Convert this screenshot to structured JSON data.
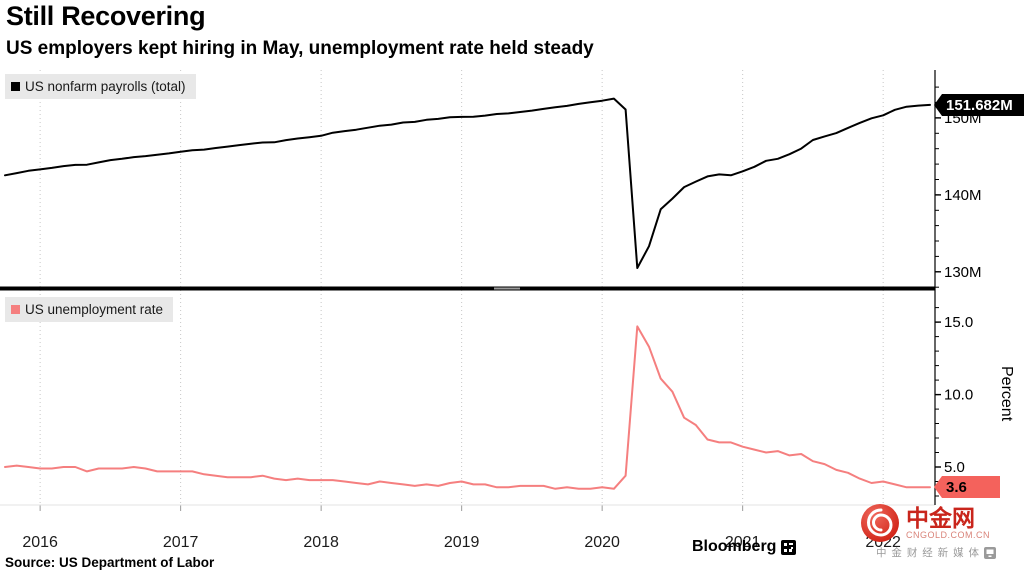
{
  "header": {
    "title": "Still Recovering",
    "subtitle": "US employers kept hiring in May, unemployment rate held steady"
  },
  "footer": {
    "source": "Source: US Department of Labor",
    "brand": "Bloomberg"
  },
  "watermark": {
    "name": "中金网",
    "domain": "CNGOLD.COM.CN",
    "tagline": "中 金 财 经 新 媒 体"
  },
  "x_axis": {
    "labels": [
      "2016",
      "2017",
      "2018",
      "2019",
      "2020",
      "2021",
      "2022"
    ],
    "tick_month_indices": [
      3,
      15,
      27,
      39,
      51,
      63,
      75
    ],
    "frequency": "monthly"
  },
  "chart_data": [
    {
      "type": "line",
      "panel": "top",
      "series_id": "nonfarm-payrolls-line",
      "legend": "US nonfarm payrolls (total)",
      "color": "#000000",
      "ylim": [
        127.9,
        155.7
      ],
      "yticks": [
        130,
        140,
        150
      ],
      "ytick_labels": [
        "130M",
        "140M",
        "150M"
      ],
      "last_value_label": "151.682M",
      "values": [
        142.54,
        142.82,
        143.12,
        143.31,
        143.5,
        143.74,
        143.89,
        143.92,
        144.22,
        144.51,
        144.68,
        144.91,
        145.04,
        145.21,
        145.38,
        145.6,
        145.8,
        145.88,
        146.09,
        146.27,
        146.47,
        146.64,
        146.8,
        146.83,
        147.11,
        147.32,
        147.49,
        147.67,
        148.08,
        148.28,
        148.46,
        148.73,
        148.98,
        149.13,
        149.4,
        149.48,
        149.75,
        149.87,
        150.09,
        150.13,
        150.14,
        150.29,
        150.5,
        150.58,
        150.77,
        150.95,
        151.16,
        151.37,
        151.56,
        151.82,
        152.02,
        152.23,
        152.5,
        151.09,
        130.5,
        133.33,
        138.12,
        139.51,
        141.01,
        141.72,
        142.4,
        142.66,
        142.54,
        143.06,
        143.64,
        144.42,
        144.69,
        145.28,
        146.01,
        147.12,
        147.6,
        148.02,
        148.7,
        149.35,
        149.94,
        150.33,
        151.05,
        151.45,
        151.6,
        151.682
      ]
    },
    {
      "type": "line",
      "panel": "bottom",
      "series_id": "unemployment-rate-line",
      "legend": "US unemployment rate",
      "color": "#f57f7f",
      "ylabel": "Percent",
      "ylim": [
        2.38,
        16.8
      ],
      "yticks": [
        5,
        10,
        15
      ],
      "ytick_labels": [
        "5.0",
        "10.0",
        "15.0"
      ],
      "last_value_label": "3.6",
      "values": [
        5.0,
        5.1,
        5.0,
        4.9,
        4.9,
        5.0,
        5.0,
        4.7,
        4.9,
        4.9,
        4.9,
        5.0,
        4.9,
        4.7,
        4.7,
        4.7,
        4.7,
        4.5,
        4.4,
        4.3,
        4.3,
        4.3,
        4.4,
        4.2,
        4.1,
        4.2,
        4.1,
        4.1,
        4.1,
        4.0,
        3.9,
        3.8,
        4.0,
        3.9,
        3.8,
        3.7,
        3.8,
        3.7,
        3.9,
        4.0,
        3.8,
        3.8,
        3.6,
        3.6,
        3.7,
        3.7,
        3.7,
        3.5,
        3.6,
        3.5,
        3.5,
        3.6,
        3.5,
        4.4,
        14.7,
        13.3,
        11.1,
        10.2,
        8.4,
        7.9,
        6.9,
        6.7,
        6.7,
        6.4,
        6.2,
        6.0,
        6.1,
        5.8,
        5.9,
        5.4,
        5.2,
        4.8,
        4.6,
        4.2,
        3.9,
        4.0,
        3.8,
        3.6,
        3.6,
        3.6
      ]
    }
  ]
}
